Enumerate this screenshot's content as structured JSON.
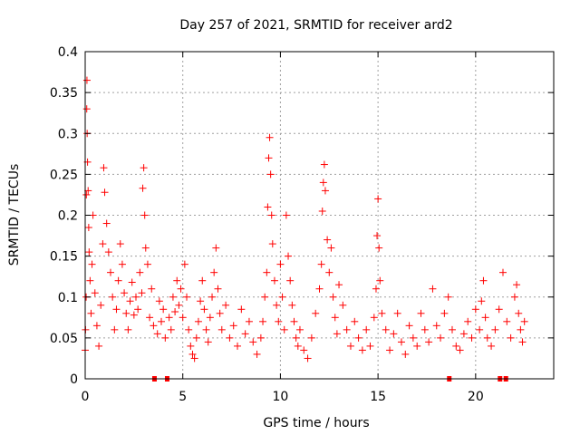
{
  "chart_data": {
    "type": "scatter",
    "title": "Day 257 of 2021, SRMTID for receiver ard2",
    "xlabel": "GPS time / hours",
    "ylabel": "SRMTID / TECUs",
    "xlim": [
      0,
      24
    ],
    "ylim": [
      0,
      0.4
    ],
    "grid": true,
    "marker": "+",
    "color": "#ff0000",
    "x_ticks": [
      0,
      5,
      10,
      15,
      20
    ],
    "x_tick_labels": [
      "0",
      "5",
      "10",
      "15",
      "20"
    ],
    "y_ticks": [
      0,
      0.05,
      0.1,
      0.15,
      0.2,
      0.25,
      0.3,
      0.35,
      0.4
    ],
    "y_tick_labels": [
      "0",
      "0.05",
      "0.1",
      "0.15",
      "0.2",
      "0.25",
      "0.3",
      "0.35",
      "0.4"
    ],
    "x_range_covered": [
      0,
      22.5
    ],
    "data_gaps_at_zero": [
      3.55,
      4.2,
      18.65,
      21.25,
      21.55
    ],
    "series": [
      {
        "name": "SRMTID",
        "points": [
          [
            0.0,
            0.035
          ],
          [
            0.02,
            0.06
          ],
          [
            0.05,
            0.1
          ],
          [
            0.06,
            0.225
          ],
          [
            0.08,
            0.33
          ],
          [
            0.09,
            0.365
          ],
          [
            0.1,
            0.3
          ],
          [
            0.12,
            0.265
          ],
          [
            0.15,
            0.23
          ],
          [
            0.18,
            0.185
          ],
          [
            0.2,
            0.155
          ],
          [
            0.25,
            0.12
          ],
          [
            0.3,
            0.08
          ],
          [
            0.35,
            0.14
          ],
          [
            0.4,
            0.2
          ],
          [
            0.5,
            0.105
          ],
          [
            0.6,
            0.065
          ],
          [
            0.7,
            0.04
          ],
          [
            0.8,
            0.09
          ],
          [
            0.9,
            0.165
          ],
          [
            0.95,
            0.258
          ],
          [
            1.0,
            0.228
          ],
          [
            1.1,
            0.19
          ],
          [
            1.2,
            0.155
          ],
          [
            1.3,
            0.13
          ],
          [
            1.4,
            0.1
          ],
          [
            1.5,
            0.06
          ],
          [
            1.6,
            0.085
          ],
          [
            1.7,
            0.12
          ],
          [
            1.8,
            0.165
          ],
          [
            1.9,
            0.14
          ],
          [
            2.0,
            0.105
          ],
          [
            2.1,
            0.08
          ],
          [
            2.2,
            0.06
          ],
          [
            2.3,
            0.095
          ],
          [
            2.4,
            0.118
          ],
          [
            2.5,
            0.078
          ],
          [
            2.6,
            0.1
          ],
          [
            2.7,
            0.085
          ],
          [
            2.8,
            0.13
          ],
          [
            2.9,
            0.105
          ],
          [
            2.95,
            0.233
          ],
          [
            3.0,
            0.258
          ],
          [
            3.05,
            0.2
          ],
          [
            3.1,
            0.16
          ],
          [
            3.2,
            0.14
          ],
          [
            3.3,
            0.075
          ],
          [
            3.4,
            0.11
          ],
          [
            3.5,
            0.065
          ],
          [
            3.7,
            0.055
          ],
          [
            3.8,
            0.095
          ],
          [
            3.9,
            0.07
          ],
          [
            4.0,
            0.085
          ],
          [
            4.1,
            0.05
          ],
          [
            4.3,
            0.075
          ],
          [
            4.4,
            0.06
          ],
          [
            4.5,
            0.1
          ],
          [
            4.6,
            0.082
          ],
          [
            4.7,
            0.12
          ],
          [
            4.8,
            0.09
          ],
          [
            4.9,
            0.11
          ],
          [
            5.0,
            0.075
          ],
          [
            5.1,
            0.14
          ],
          [
            5.2,
            0.1
          ],
          [
            5.3,
            0.06
          ],
          [
            5.4,
            0.04
          ],
          [
            5.5,
            0.03
          ],
          [
            5.6,
            0.025
          ],
          [
            5.7,
            0.05
          ],
          [
            5.8,
            0.07
          ],
          [
            5.9,
            0.095
          ],
          [
            6.0,
            0.12
          ],
          [
            6.1,
            0.085
          ],
          [
            6.2,
            0.06
          ],
          [
            6.3,
            0.045
          ],
          [
            6.4,
            0.075
          ],
          [
            6.5,
            0.1
          ],
          [
            6.6,
            0.13
          ],
          [
            6.7,
            0.16
          ],
          [
            6.8,
            0.11
          ],
          [
            6.9,
            0.08
          ],
          [
            7.0,
            0.06
          ],
          [
            7.2,
            0.09
          ],
          [
            7.4,
            0.05
          ],
          [
            7.6,
            0.065
          ],
          [
            7.8,
            0.04
          ],
          [
            8.0,
            0.085
          ],
          [
            8.2,
            0.055
          ],
          [
            8.4,
            0.07
          ],
          [
            8.6,
            0.045
          ],
          [
            8.8,
            0.03
          ],
          [
            9.0,
            0.05
          ],
          [
            9.1,
            0.07
          ],
          [
            9.2,
            0.1
          ],
          [
            9.3,
            0.13
          ],
          [
            9.35,
            0.21
          ],
          [
            9.4,
            0.27
          ],
          [
            9.45,
            0.295
          ],
          [
            9.5,
            0.25
          ],
          [
            9.55,
            0.2
          ],
          [
            9.6,
            0.165
          ],
          [
            9.7,
            0.12
          ],
          [
            9.8,
            0.09
          ],
          [
            9.9,
            0.07
          ],
          [
            10.0,
            0.14
          ],
          [
            10.1,
            0.1
          ],
          [
            10.2,
            0.06
          ],
          [
            10.3,
            0.2
          ],
          [
            10.4,
            0.15
          ],
          [
            10.5,
            0.12
          ],
          [
            10.6,
            0.09
          ],
          [
            10.7,
            0.07
          ],
          [
            10.8,
            0.05
          ],
          [
            10.9,
            0.04
          ],
          [
            11.0,
            0.06
          ],
          [
            11.2,
            0.035
          ],
          [
            11.4,
            0.025
          ],
          [
            11.6,
            0.05
          ],
          [
            11.8,
            0.08
          ],
          [
            12.0,
            0.11
          ],
          [
            12.1,
            0.14
          ],
          [
            12.15,
            0.205
          ],
          [
            12.2,
            0.24
          ],
          [
            12.25,
            0.262
          ],
          [
            12.3,
            0.23
          ],
          [
            12.4,
            0.17
          ],
          [
            12.5,
            0.13
          ],
          [
            12.6,
            0.16
          ],
          [
            12.7,
            0.1
          ],
          [
            12.8,
            0.075
          ],
          [
            12.9,
            0.055
          ],
          [
            13.0,
            0.115
          ],
          [
            13.2,
            0.09
          ],
          [
            13.4,
            0.06
          ],
          [
            13.6,
            0.04
          ],
          [
            13.8,
            0.07
          ],
          [
            14.0,
            0.05
          ],
          [
            14.2,
            0.035
          ],
          [
            14.4,
            0.06
          ],
          [
            14.6,
            0.04
          ],
          [
            14.8,
            0.075
          ],
          [
            14.9,
            0.11
          ],
          [
            14.95,
            0.175
          ],
          [
            15.0,
            0.22
          ],
          [
            15.05,
            0.16
          ],
          [
            15.1,
            0.12
          ],
          [
            15.2,
            0.08
          ],
          [
            15.4,
            0.06
          ],
          [
            15.6,
            0.035
          ],
          [
            15.8,
            0.055
          ],
          [
            16.0,
            0.08
          ],
          [
            16.2,
            0.045
          ],
          [
            16.4,
            0.03
          ],
          [
            16.6,
            0.065
          ],
          [
            16.8,
            0.05
          ],
          [
            17.0,
            0.04
          ],
          [
            17.2,
            0.08
          ],
          [
            17.4,
            0.06
          ],
          [
            17.6,
            0.045
          ],
          [
            17.8,
            0.11
          ],
          [
            18.0,
            0.065
          ],
          [
            18.2,
            0.05
          ],
          [
            18.4,
            0.08
          ],
          [
            18.6,
            0.1
          ],
          [
            18.8,
            0.06
          ],
          [
            19.0,
            0.04
          ],
          [
            19.2,
            0.035
          ],
          [
            19.4,
            0.055
          ],
          [
            19.6,
            0.07
          ],
          [
            19.8,
            0.05
          ],
          [
            20.0,
            0.085
          ],
          [
            20.2,
            0.06
          ],
          [
            20.3,
            0.095
          ],
          [
            20.4,
            0.12
          ],
          [
            20.5,
            0.075
          ],
          [
            20.6,
            0.05
          ],
          [
            20.8,
            0.04
          ],
          [
            21.0,
            0.06
          ],
          [
            21.2,
            0.085
          ],
          [
            21.4,
            0.13
          ],
          [
            21.6,
            0.07
          ],
          [
            21.8,
            0.05
          ],
          [
            22.0,
            0.1
          ],
          [
            22.1,
            0.115
          ],
          [
            22.2,
            0.08
          ],
          [
            22.3,
            0.06
          ],
          [
            22.4,
            0.045
          ],
          [
            22.5,
            0.07
          ]
        ]
      }
    ]
  }
}
